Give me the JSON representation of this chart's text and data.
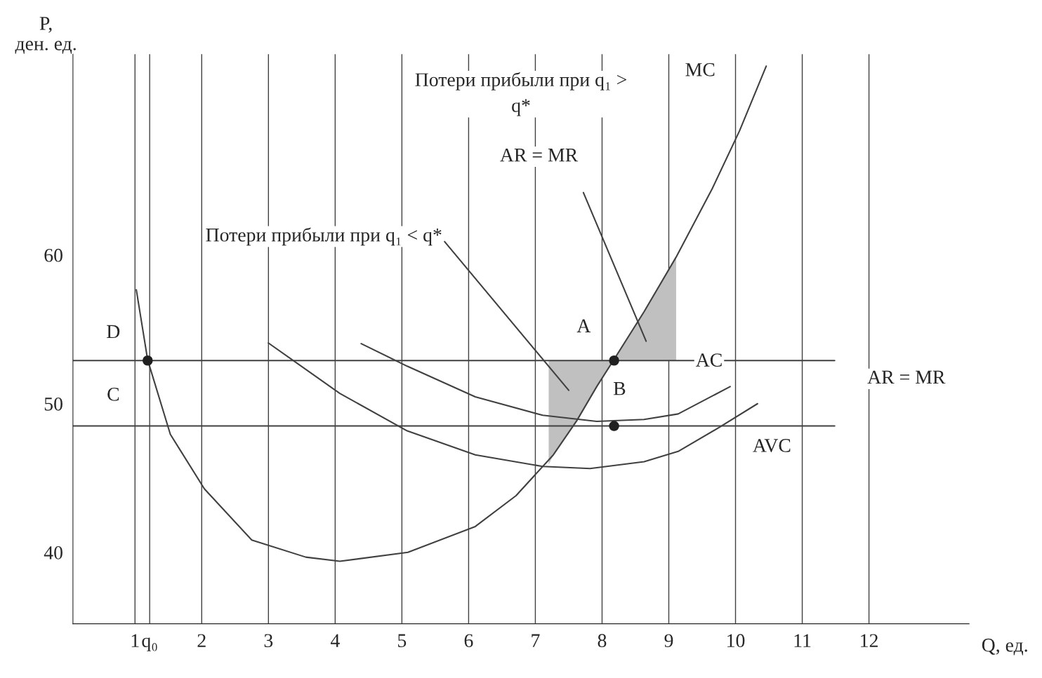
{
  "chart_data": {
    "type": "line",
    "xlabel": "Q, ед.",
    "ylabel": "P,\nден. ед.",
    "xlim": [
      0.07,
      13.5
    ],
    "ylim": [
      35.2,
      73.5
    ],
    "xticks": [
      1,
      {
        "value": 1.22,
        "label": "q₀"
      },
      2,
      3,
      4,
      5,
      6,
      7,
      8,
      9,
      10,
      11,
      12
    ],
    "yticks": [
      40,
      50,
      60
    ],
    "grid": "x",
    "legend": false,
    "ref_lines": [
      {
        "axis": "y",
        "value": 52.9,
        "color": "#404040"
      },
      {
        "axis": "y",
        "value": 48.5,
        "color": "#404040"
      }
    ],
    "series": [
      {
        "type": "area",
        "color": "#c0c0c0",
        "x": [
          7.2,
          7.2,
          7.27,
          7.62,
          7.92,
          8.18
        ],
        "values": [
          52.9,
          45.9,
          46.56,
          48.85,
          51.15,
          52.9
        ]
      },
      {
        "type": "area",
        "color": "#c0c0c0",
        "x": [
          8.18,
          8.63,
          9.11,
          9.11
        ],
        "values": [
          52.9,
          56.19,
          59.86,
          52.9
        ]
      },
      {
        "color": "#404040",
        "x": [
          1.02,
          1.19,
          1.53,
          2.04,
          2.75,
          3.56,
          4.07,
          5.09,
          6.1,
          6.71,
          7.27,
          7.62,
          7.92,
          8.18,
          8.63,
          9.11,
          9.65,
          10.06,
          10.46
        ],
        "values": [
          57.66,
          52.94,
          47.94,
          44.27,
          40.83,
          39.68,
          39.4,
          40.0,
          41.74,
          43.81,
          46.56,
          48.85,
          51.15,
          52.98,
          56.19,
          59.86,
          64.45,
          68.35,
          72.7
        ]
      },
      {
        "color": "#404040",
        "x": [
          4.39,
          5.08,
          6.1,
          7.11,
          7.92,
          8.63,
          9.14,
          9.92
        ],
        "values": [
          54.04,
          52.52,
          50.46,
          49.22,
          48.81,
          48.94,
          49.31,
          51.15
        ]
      },
      {
        "color": "#404040",
        "x": [
          3.0,
          4.07,
          5.08,
          6.1,
          7.11,
          7.82,
          8.63,
          9.14,
          9.75,
          10.33
        ],
        "values": [
          54.08,
          50.69,
          48.17,
          46.56,
          45.78,
          45.64,
          46.1,
          46.79,
          48.39,
          50.0
        ]
      },
      {
        "color": "#404040",
        "x": [
          5.64,
          7.5
        ],
        "values": [
          60.9,
          50.9
        ]
      },
      {
        "color": "#404040",
        "x": [
          7.72,
          8.66
        ],
        "values": [
          64.2,
          54.2
        ]
      },
      {
        "type": "scatter",
        "color": "#202020",
        "x": [
          1.19,
          8.18,
          8.18
        ],
        "values": [
          52.9,
          52.9,
          48.5
        ]
      }
    ],
    "annotations": [
      "D",
      "C",
      "A",
      "B",
      "AC",
      "AVC",
      "MC",
      "AR = MR",
      "AR = MR",
      "Потери прибыли при q₁ >\nq*",
      "Потери прибыли при q₁ < q*"
    ]
  }
}
